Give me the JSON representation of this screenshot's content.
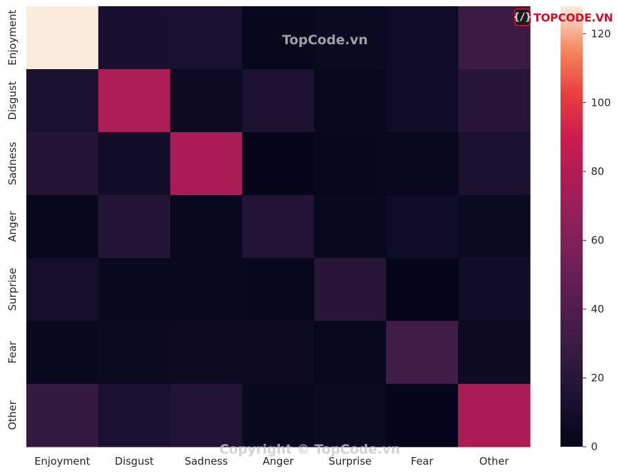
{
  "chart_data": {
    "type": "heatmap",
    "row_labels": [
      "Enjoyment",
      "Disgust",
      "Sadness",
      "Anger",
      "Surprise",
      "Fear",
      "Other"
    ],
    "col_labels": [
      "Enjoyment",
      "Disgust",
      "Sadness",
      "Anger",
      "Surprise",
      "Fear",
      "Other"
    ],
    "values": [
      [
        128,
        12,
        13,
        2,
        5,
        7,
        30
      ],
      [
        13,
        78,
        6,
        14,
        3,
        7,
        19
      ],
      [
        18,
        8,
        76,
        1,
        2,
        4,
        13
      ],
      [
        2,
        18,
        4,
        17,
        3,
        7,
        5
      ],
      [
        10,
        3,
        4,
        2,
        19,
        1,
        8
      ],
      [
        4,
        5,
        6,
        6,
        3,
        33,
        6
      ],
      [
        27,
        13,
        16,
        4,
        5,
        1,
        76
      ]
    ],
    "colorbar": {
      "range": [
        0,
        128
      ],
      "ticks": [
        0,
        20,
        40,
        60,
        80,
        100,
        120
      ],
      "colormap": "rocket"
    },
    "title": "",
    "xlabel": "",
    "ylabel": ""
  },
  "watermarks": {
    "center": "TopCode.vn",
    "bottom": "Copyright © TopCode.vn",
    "logo_badge": "{/}",
    "logo_text": "TOPCODE.VN"
  }
}
